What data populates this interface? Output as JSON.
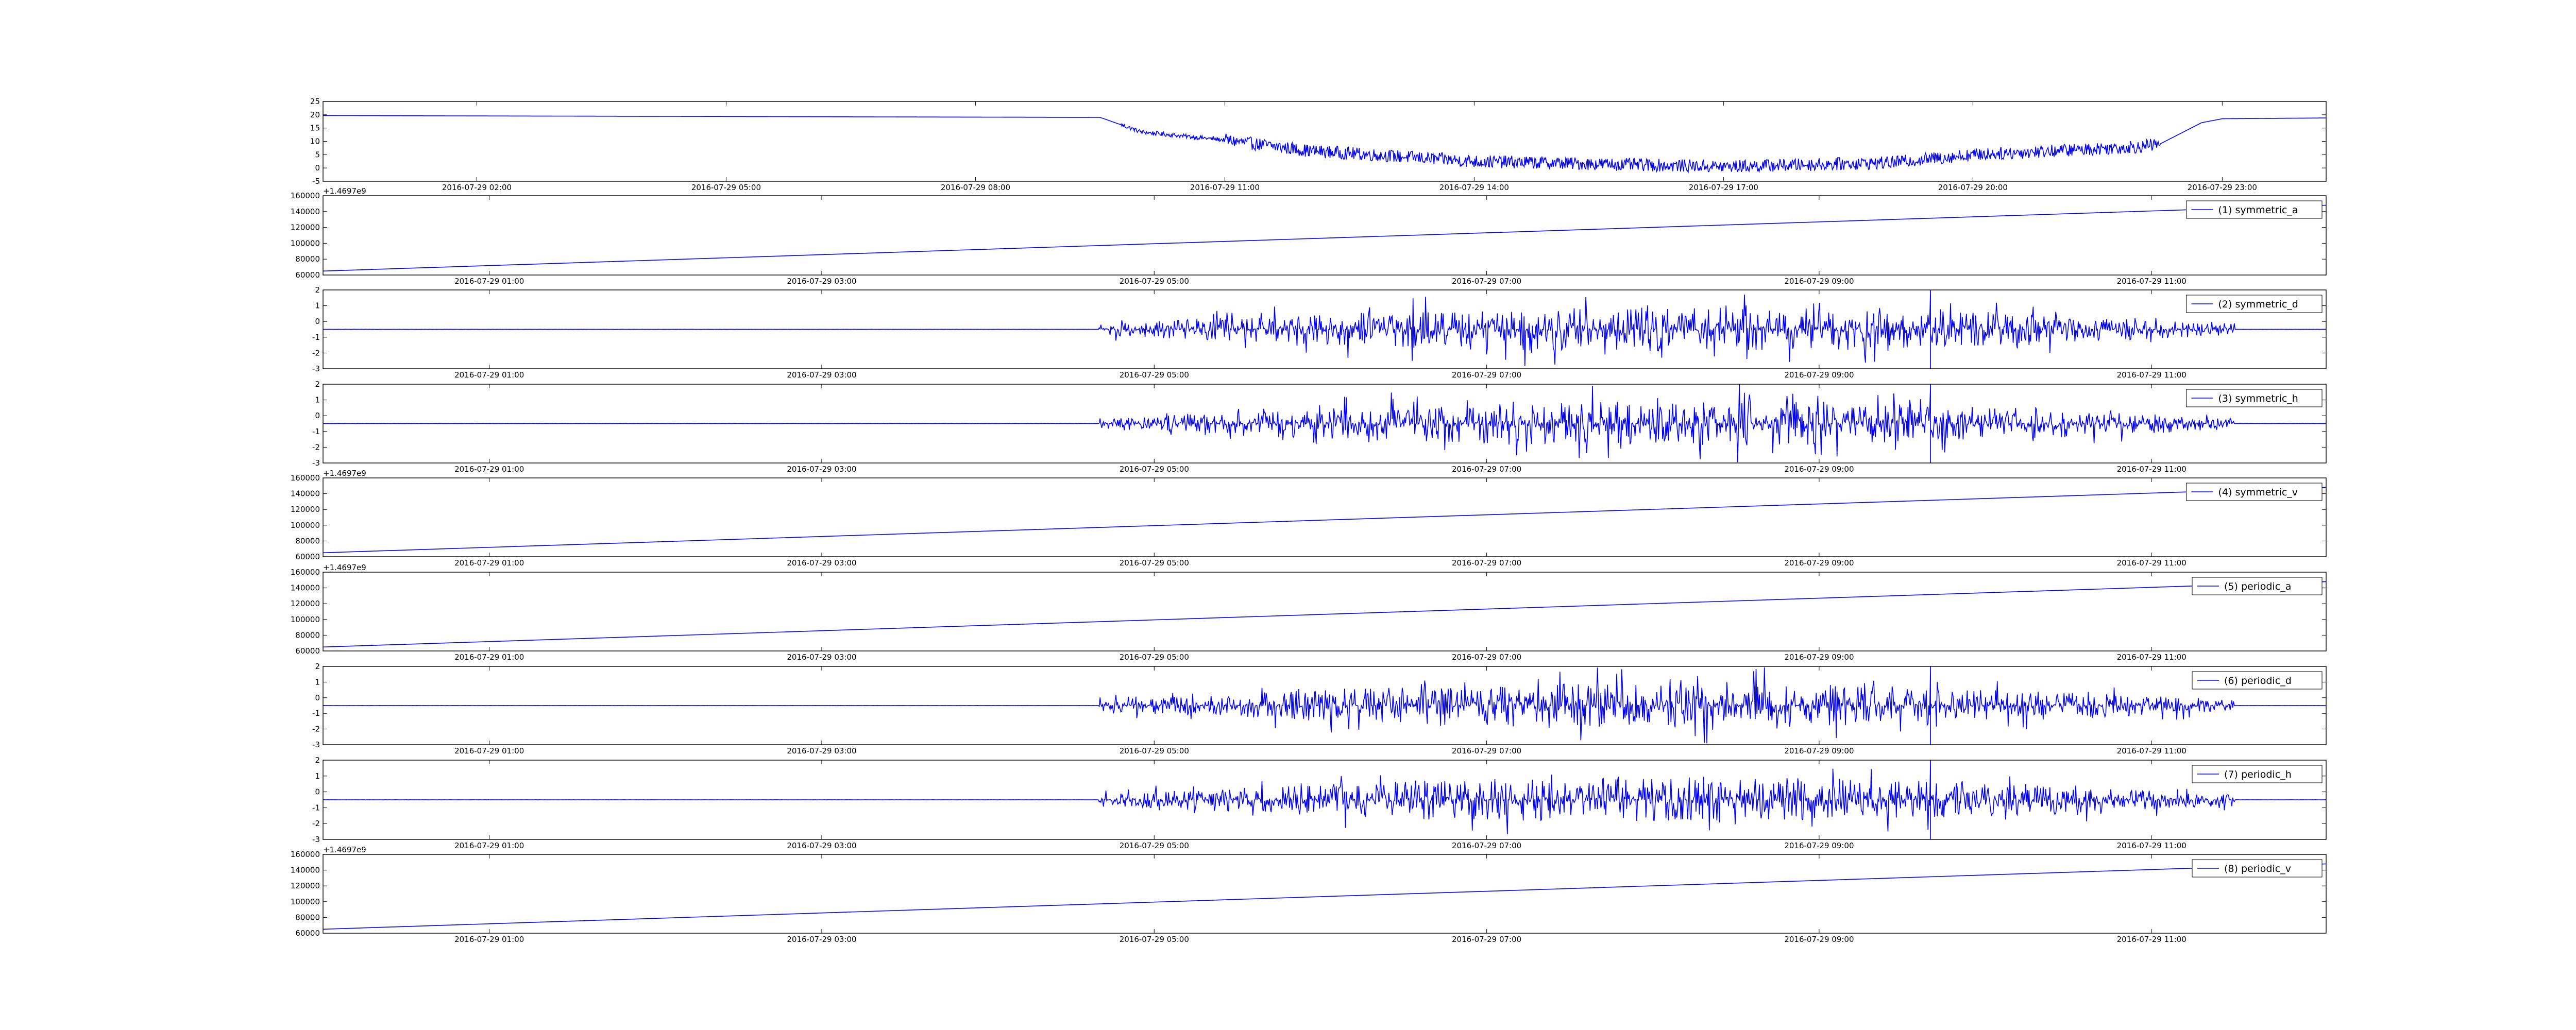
{
  "figure": {
    "background": "#ffffff",
    "line_color": "#0000ff",
    "axis_color": "#000000"
  },
  "chart_data": [
    {
      "type": "line",
      "title": "",
      "xlabel": "",
      "ylabel": "",
      "legend": null,
      "legend_position": "none",
      "grid": false,
      "x_ticks": [
        "2016-07-29 02:00",
        "2016-07-29 05:00",
        "2016-07-29 08:00",
        "2016-07-29 11:00",
        "2016-07-29 14:00",
        "2016-07-29 17:00",
        "2016-07-29 20:00",
        "2016-07-29 23:00"
      ],
      "x_range": [
        "2016-07-29 00:09",
        "2016-07-29 24:15"
      ],
      "y_ticks": [
        "25",
        "20",
        "15",
        "10",
        "5",
        "0",
        "-5"
      ],
      "ylim": [
        -5,
        25
      ],
      "y_offset_label": "",
      "signal": {
        "kind": "temperature_trace",
        "keypoints": [
          {
            "x": "2016-07-29 00:09",
            "y": 19.7
          },
          {
            "x": "2016-07-29 09:30",
            "y": 19.0
          },
          {
            "x": "2016-07-29 10:00",
            "y": 13.5
          },
          {
            "x": "2016-07-29 11:00",
            "y": 10.5
          },
          {
            "x": "2016-07-29 12:00",
            "y": 6.5
          },
          {
            "x": "2016-07-29 14:00",
            "y": 2.5
          },
          {
            "x": "2016-07-29 17:00",
            "y": 0.5
          },
          {
            "x": "2016-07-29 19:00",
            "y": 2.0
          },
          {
            "x": "2016-07-29 20:00",
            "y": 5.0
          },
          {
            "x": "2016-07-29 22:00",
            "y": 8.0
          },
          {
            "x": "2016-07-29 22:15",
            "y": 9.0
          },
          {
            "x": "2016-07-29 22:45",
            "y": 17.0
          },
          {
            "x": "2016-07-29 23:00",
            "y": 18.5
          },
          {
            "x": "2016-07-29 24:15",
            "y": 18.8
          }
        ],
        "noise_start": "2016-07-29 11:00",
        "noise_end": "2016-07-29 22:15",
        "noise_amplitude": 3.0
      }
    },
    {
      "type": "line",
      "title": "",
      "legend": [
        "(1) symmetric_a"
      ],
      "legend_position": "top-right",
      "grid": false,
      "x_ticks": [
        "2016-07-29 01:00",
        "2016-07-29 03:00",
        "2016-07-29 05:00",
        "2016-07-29 07:00",
        "2016-07-29 09:00",
        "2016-07-29 11:00"
      ],
      "x_range": [
        "2016-07-29 00:00",
        "2016-07-29 12:03"
      ],
      "y_ticks": [
        "160000",
        "140000",
        "120000",
        "100000",
        "80000",
        "60000"
      ],
      "ylim": [
        60000,
        160000
      ],
      "y_offset_label": "+1.4697e9",
      "signal": {
        "kind": "ramp",
        "start": 65000,
        "end": 148000
      }
    },
    {
      "type": "line",
      "title": "",
      "legend": [
        "(2) symmetric_d"
      ],
      "legend_position": "top-right",
      "grid": false,
      "x_ticks": [
        "2016-07-29 01:00",
        "2016-07-29 03:00",
        "2016-07-29 05:00",
        "2016-07-29 07:00",
        "2016-07-29 09:00",
        "2016-07-29 11:00"
      ],
      "x_range": [
        "2016-07-29 00:00",
        "2016-07-29 12:03"
      ],
      "y_ticks": [
        "2",
        "1",
        "0",
        "-1",
        "-2",
        "-3"
      ],
      "ylim": [
        -3,
        2
      ],
      "y_offset_label": "",
      "signal": {
        "kind": "noise_burst",
        "baseline": -0.5,
        "burst_start": "2016-07-29 04:40",
        "burst_end": "2016-07-29 11:30",
        "peak_amplitude": 1.8,
        "spike_at": "2016-07-29 09:40"
      }
    },
    {
      "type": "line",
      "title": "",
      "legend": [
        "(3) symmetric_h"
      ],
      "legend_position": "top-right",
      "grid": false,
      "x_ticks": [
        "2016-07-29 01:00",
        "2016-07-29 03:00",
        "2016-07-29 05:00",
        "2016-07-29 07:00",
        "2016-07-29 09:00",
        "2016-07-29 11:00"
      ],
      "x_range": [
        "2016-07-29 00:00",
        "2016-07-29 12:03"
      ],
      "y_ticks": [
        "2",
        "1",
        "0",
        "-1",
        "-2",
        "-3"
      ],
      "ylim": [
        -3,
        2
      ],
      "y_offset_label": "",
      "signal": {
        "kind": "noise_burst",
        "baseline": -0.5,
        "burst_start": "2016-07-29 04:40",
        "burst_end": "2016-07-29 11:30",
        "peak_amplitude": 1.8,
        "spike_at": "2016-07-29 09:40"
      }
    },
    {
      "type": "line",
      "title": "",
      "legend": [
        "(4) symmetric_v"
      ],
      "legend_position": "top-right",
      "grid": false,
      "x_ticks": [
        "2016-07-29 01:00",
        "2016-07-29 03:00",
        "2016-07-29 05:00",
        "2016-07-29 07:00",
        "2016-07-29 09:00",
        "2016-07-29 11:00"
      ],
      "x_range": [
        "2016-07-29 00:00",
        "2016-07-29 12:03"
      ],
      "y_ticks": [
        "160000",
        "140000",
        "120000",
        "100000",
        "80000",
        "60000"
      ],
      "ylim": [
        60000,
        160000
      ],
      "y_offset_label": "+1.4697e9",
      "signal": {
        "kind": "ramp",
        "start": 65000,
        "end": 148000
      }
    },
    {
      "type": "line",
      "title": "",
      "legend": [
        "(5) periodic_a"
      ],
      "legend_position": "top-right",
      "grid": false,
      "x_ticks": [
        "2016-07-29 01:00",
        "2016-07-29 03:00",
        "2016-07-29 05:00",
        "2016-07-29 07:00",
        "2016-07-29 09:00",
        "2016-07-29 11:00"
      ],
      "x_range": [
        "2016-07-29 00:00",
        "2016-07-29 12:03"
      ],
      "y_ticks": [
        "160000",
        "140000",
        "120000",
        "100000",
        "80000",
        "60000"
      ],
      "ylim": [
        60000,
        160000
      ],
      "y_offset_label": "+1.4697e9",
      "signal": {
        "kind": "ramp",
        "start": 65000,
        "end": 148000
      }
    },
    {
      "type": "line",
      "title": "",
      "legend": [
        "(6) periodic_d"
      ],
      "legend_position": "top-right",
      "grid": false,
      "x_ticks": [
        "2016-07-29 01:00",
        "2016-07-29 03:00",
        "2016-07-29 05:00",
        "2016-07-29 07:00",
        "2016-07-29 09:00",
        "2016-07-29 11:00"
      ],
      "x_range": [
        "2016-07-29 00:00",
        "2016-07-29 12:03"
      ],
      "y_ticks": [
        "2",
        "1",
        "0",
        "-1",
        "-2",
        "-3"
      ],
      "ylim": [
        -3,
        2
      ],
      "y_offset_label": "",
      "signal": {
        "kind": "noise_burst",
        "baseline": -0.5,
        "burst_start": "2016-07-29 04:40",
        "burst_end": "2016-07-29 11:30",
        "peak_amplitude": 1.8,
        "spike_at": "2016-07-29 09:40"
      }
    },
    {
      "type": "line",
      "title": "",
      "legend": [
        "(7) periodic_h"
      ],
      "legend_position": "top-right",
      "grid": false,
      "x_ticks": [
        "2016-07-29 01:00",
        "2016-07-29 03:00",
        "2016-07-29 05:00",
        "2016-07-29 07:00",
        "2016-07-29 09:00",
        "2016-07-29 11:00"
      ],
      "x_range": [
        "2016-07-29 00:00",
        "2016-07-29 12:03"
      ],
      "y_ticks": [
        "2",
        "1",
        "0",
        "-1",
        "-2",
        "-3"
      ],
      "ylim": [
        -3,
        2
      ],
      "y_offset_label": "",
      "signal": {
        "kind": "noise_burst",
        "baseline": -0.5,
        "burst_start": "2016-07-29 04:40",
        "burst_end": "2016-07-29 11:30",
        "peak_amplitude": 1.8,
        "spike_at": "2016-07-29 09:40"
      }
    },
    {
      "type": "line",
      "title": "",
      "legend": [
        "(8) periodic_v"
      ],
      "legend_position": "top-right",
      "grid": false,
      "x_ticks": [
        "2016-07-29 01:00",
        "2016-07-29 03:00",
        "2016-07-29 05:00",
        "2016-07-29 07:00",
        "2016-07-29 09:00",
        "2016-07-29 11:00"
      ],
      "x_range": [
        "2016-07-29 00:00",
        "2016-07-29 12:03"
      ],
      "y_ticks": [
        "160000",
        "140000",
        "120000",
        "100000",
        "80000",
        "60000"
      ],
      "ylim": [
        60000,
        160000
      ],
      "y_offset_label": "+1.4697e9",
      "signal": {
        "kind": "ramp",
        "start": 65000,
        "end": 148000
      }
    }
  ]
}
